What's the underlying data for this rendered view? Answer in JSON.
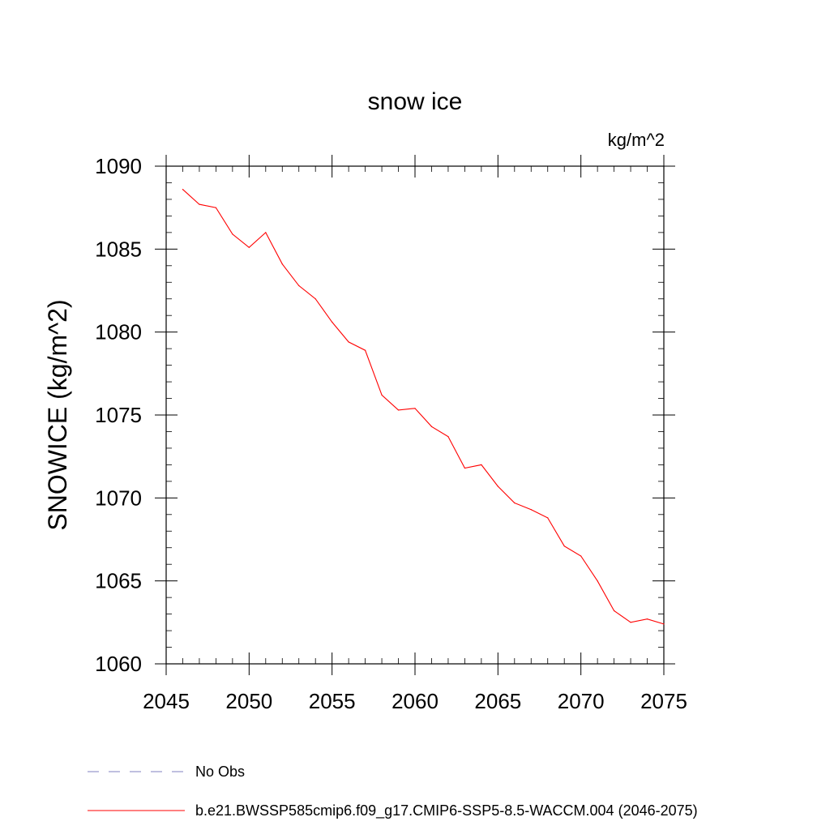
{
  "chart_data": {
    "type": "line",
    "title": "snow ice",
    "units": "kg/m^2",
    "xlabel": "",
    "ylabel": "SNOWICE  (kg/m^2)",
    "xlim": [
      2045,
      2075
    ],
    "ylim": [
      1060,
      1090
    ],
    "x_ticks": [
      2045,
      2050,
      2055,
      2060,
      2065,
      2070,
      2075
    ],
    "y_ticks": [
      1060,
      1065,
      1070,
      1075,
      1080,
      1085,
      1090
    ],
    "grid": false,
    "legend_position": "bottom",
    "series": [
      {
        "name": "b.e21.BWSSP585cmip6.f09_g17.CMIP6-SSP5-8.5-WACCM.004 (2046-2075)",
        "color": "#ff0000",
        "style": "solid",
        "x": [
          2046,
          2047,
          2048,
          2049,
          2050,
          2051,
          2052,
          2053,
          2054,
          2055,
          2056,
          2057,
          2058,
          2059,
          2060,
          2061,
          2062,
          2063,
          2064,
          2065,
          2066,
          2067,
          2068,
          2069,
          2070,
          2071,
          2072,
          2073,
          2074,
          2075
        ],
        "values": [
          1088.6,
          1087.7,
          1087.5,
          1085.9,
          1085.1,
          1086.0,
          1084.1,
          1082.8,
          1082.0,
          1080.6,
          1079.4,
          1078.9,
          1076.2,
          1075.3,
          1075.4,
          1074.3,
          1073.7,
          1071.8,
          1072.0,
          1070.7,
          1069.7,
          1069.3,
          1068.8,
          1067.1,
          1066.5,
          1065.0,
          1063.2,
          1062.5,
          1062.7,
          1062.4
        ]
      }
    ],
    "legend": [
      {
        "label": "No Obs",
        "color": "#8080c0",
        "style": "dashed"
      },
      {
        "label": "b.e21.BWSSP585cmip6.f09_g17.CMIP6-SSP5-8.5-WACCM.004 (2046-2075)",
        "color": "#ff0000",
        "style": "solid"
      }
    ]
  }
}
